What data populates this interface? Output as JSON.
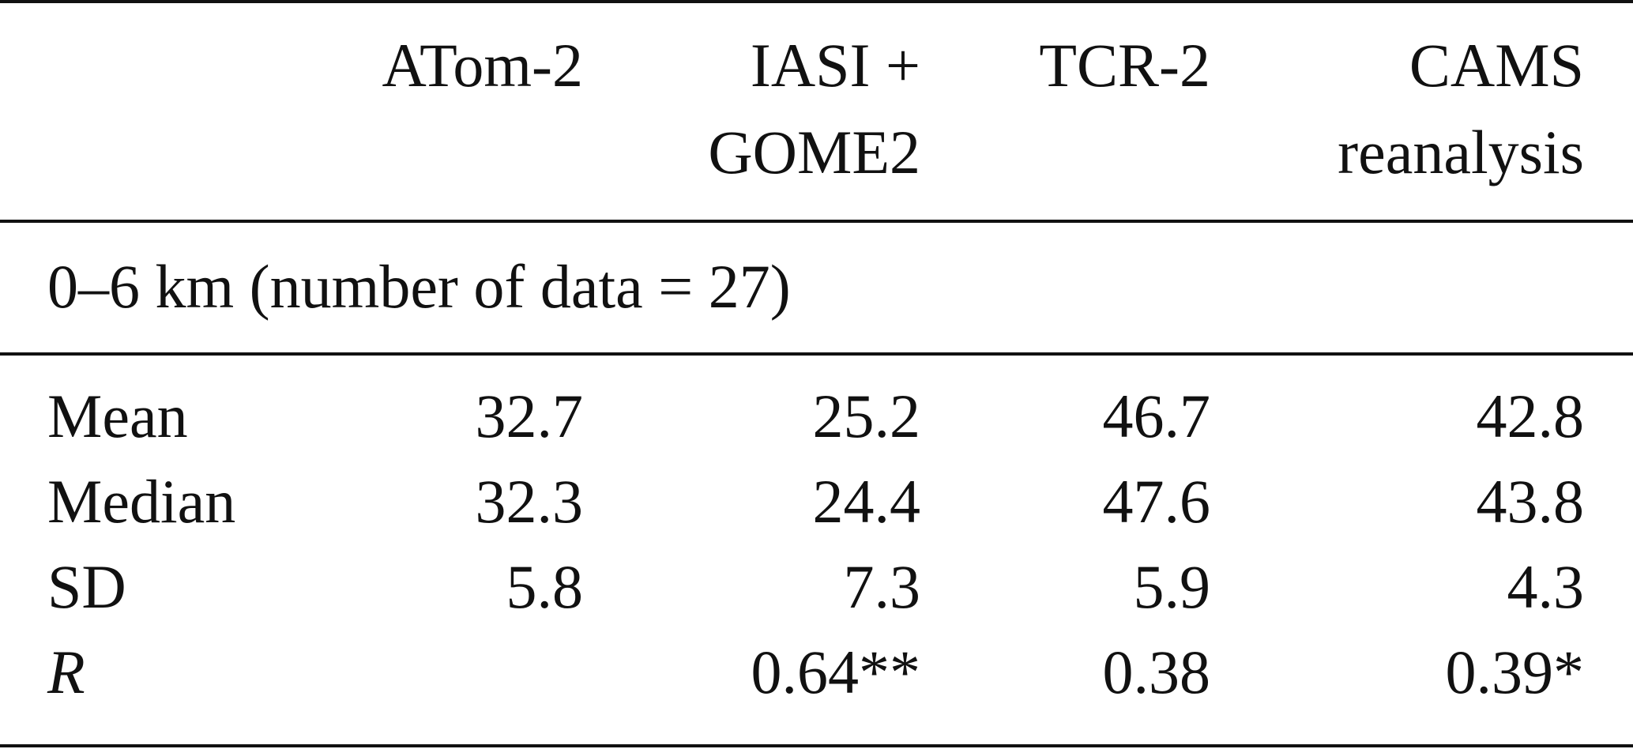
{
  "table": {
    "columns": [
      {
        "line1": "ATom-2",
        "line2": ""
      },
      {
        "line1": "IASI +",
        "line2": "GOME2"
      },
      {
        "line1": "TCR-2",
        "line2": ""
      },
      {
        "line1": "CAMS",
        "line2": "reanalysis"
      }
    ],
    "section_label": "0–6 km (number of data = 27)",
    "rows": [
      {
        "label": "Mean",
        "values": [
          "32.7",
          "25.2",
          "46.7",
          "42.8"
        ]
      },
      {
        "label": "Median",
        "values": [
          "32.3",
          "24.4",
          "47.6",
          "43.8"
        ]
      },
      {
        "label": "SD",
        "values": [
          "5.8",
          "7.3",
          "5.9",
          "4.3"
        ]
      },
      {
        "label": "R",
        "values": [
          "",
          "0.64**",
          "0.38",
          "0.39*"
        ]
      }
    ]
  }
}
